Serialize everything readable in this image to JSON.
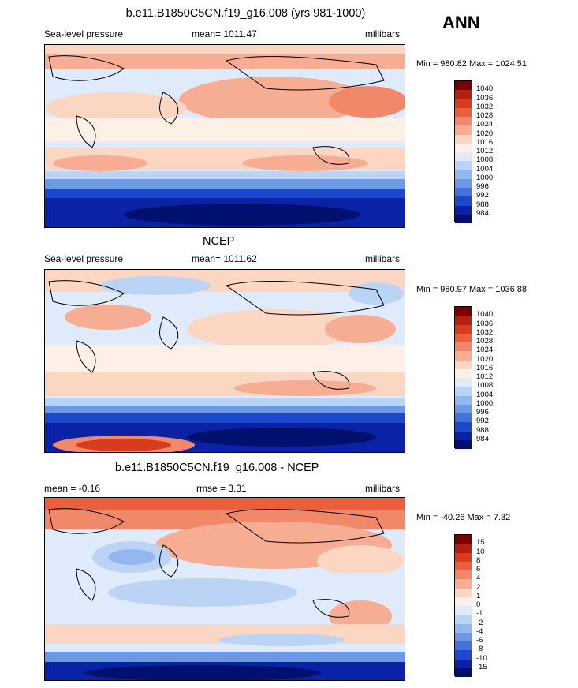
{
  "season": "ANN",
  "panels": [
    {
      "title": "b.e11.B1850C5CN.f19_g16.008 (yrs 981-1000)",
      "left_label": "Sea-level pressure",
      "mean_label": "mean= 1011.47",
      "units": "millibars",
      "minmax": "Min = 980.82 Max = 1024.51",
      "levels": [
        "1040",
        "1036",
        "1032",
        "1028",
        "1024",
        "1020",
        "1016",
        "1012",
        "1008",
        "1004",
        "1000",
        "996",
        "992",
        "988",
        "984"
      ]
    },
    {
      "title": "NCEP",
      "left_label": "Sea-level pressure",
      "mean_label": "mean= 1011.62",
      "units": "millibars",
      "minmax": "Min = 980.97 Max = 1036.88",
      "levels": [
        "1040",
        "1036",
        "1032",
        "1028",
        "1024",
        "1020",
        "1016",
        "1012",
        "1008",
        "1004",
        "1000",
        "996",
        "992",
        "988",
        "984"
      ]
    },
    {
      "title": "b.e11.B1850C5CN.f19_g16.008 - NCEP",
      "left_label": "mean =  -0.16",
      "mid_label": "rmse =   3.31",
      "units": "millibars",
      "minmax": "Min = -40.26 Max =   7.32",
      "levels": [
        "15",
        "10",
        "8",
        "6",
        "4",
        "2",
        "1",
        "0",
        "-1",
        "-2",
        "-4",
        "-6",
        "-8",
        "-10",
        "-15"
      ]
    }
  ],
  "colors": {
    "scale": [
      "#7a0000",
      "#b3200f",
      "#d83c1c",
      "#ec5f3a",
      "#f2886a",
      "#f6ad94",
      "#fbd6c3",
      "#fef0e6",
      "#dfeafb",
      "#bbd3f5",
      "#93b7ee",
      "#6d98e6",
      "#4471dc",
      "#1c49cb",
      "#0a22a6",
      "#00106e"
    ]
  }
}
